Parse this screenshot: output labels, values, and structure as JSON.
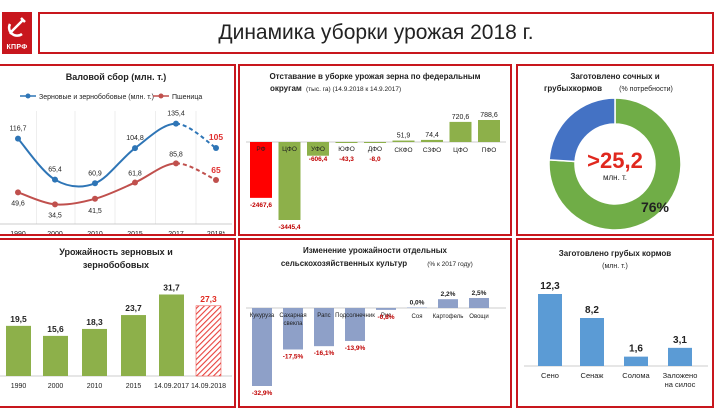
{
  "slide": {
    "title": "Динамика уборки урожая 2018 г.",
    "logo_text": "КПРФ",
    "accent_color": "#c8161d"
  },
  "chart_data": [
    {
      "id": "gross",
      "type": "line",
      "title": "Валовой сбор",
      "title_unit": "(млн. т.)",
      "categories": [
        "1990",
        "2000",
        "2010",
        "2015",
        "2017",
        "2018*"
      ],
      "series": [
        {
          "name": "Зерновые и зернобобовые (млн. т.)",
          "color": "#2e75b6",
          "values": [
            116.7,
            65.4,
            60.9,
            104.8,
            135.4,
            105
          ],
          "labels": [
            "116,7",
            "65,4",
            "60,9",
            "104,8",
            "135,4",
            "105"
          ]
        },
        {
          "name": "Пшеница",
          "color": "#c0504d",
          "values": [
            49.6,
            34.5,
            41.5,
            61.8,
            85.8,
            65
          ],
          "labels": [
            "49,6",
            "34,5",
            "41,5",
            "61,8",
            "85,8",
            "65"
          ]
        }
      ],
      "last_point_dashed": true
    },
    {
      "id": "lag",
      "type": "bar",
      "title": "Отставание в уборке урожая зерна по федеральным",
      "title_line2": "округам",
      "title_unit": "(тыс. га) (14.9.2018 к 14.9.2017)",
      "categories": [
        "РФ",
        "ЦФО",
        "УФО",
        "ЮФО",
        "ДФО",
        "СКФО",
        "СЗФО",
        "ЦФО",
        "ПФО"
      ],
      "values": [
        -2467.6,
        -3445.4,
        -606.4,
        -43.3,
        -8.0,
        51.9,
        74.4,
        720.6,
        788.6
      ],
      "labels": [
        "-2467,6",
        "-3445,4",
        "-606,4",
        "-43,3",
        "-8,0",
        "51,9",
        "74,4",
        "720,6",
        "788,6"
      ],
      "highlight_color": "#ff0000",
      "bar_color": "#8db04a"
    },
    {
      "id": "juicy",
      "type": "pie",
      "title": "Заготовлено сочных и",
      "title_line2": "грубыхкормов",
      "title_unit": "(% потребности)",
      "slices": [
        {
          "label": "76%",
          "value": 76,
          "color": "#70ad47"
        },
        {
          "label": "",
          "value": 24,
          "color": "#4472c4"
        }
      ],
      "center_value": ">25,2",
      "center_unit": "млн. т."
    },
    {
      "id": "yield",
      "type": "bar",
      "title": "Урожайность зерновых и",
      "title_line2": "зернобобовых",
      "categories": [
        "1990",
        "2000",
        "2010",
        "2015",
        "14.09.2017",
        "14.09.2018"
      ],
      "values": [
        19.5,
        15.6,
        18.3,
        23.7,
        31.7,
        27.3
      ],
      "labels": [
        "19,5",
        "15,6",
        "18,3",
        "23,7",
        "31,7",
        "27,3"
      ],
      "bar_color": "#8db04a",
      "last_bar_hatched": true,
      "last_color": "#e8413c"
    },
    {
      "id": "crops",
      "type": "bar",
      "title": "Изменение урожайности отдельных",
      "title_line2": "сельскохозяйственных культур",
      "title_unit": "(% к 2017 году)",
      "categories": [
        "Кукуруза",
        "Сахарная свекла",
        "Рапс",
        "Подсолнечник",
        "Рис",
        "Соя",
        "Картофель",
        "Овощи"
      ],
      "category_lines": [
        [
          "Кукуруза"
        ],
        [
          "Сахарная",
          "свекла"
        ],
        [
          "Рапс"
        ],
        [
          "Подсолнечник"
        ],
        [
          "Рис"
        ],
        [
          "Соя"
        ],
        [
          "Картофель"
        ],
        [
          "Овощи"
        ]
      ],
      "values": [
        -32.9,
        -17.5,
        -16.1,
        -13.9,
        -0.8,
        0.0,
        2.2,
        2.5
      ],
      "labels": [
        "-32,9%",
        "-17,5%",
        "-16,1%",
        "-13,9%",
        "-0,8%",
        "0,0%",
        "2,2%",
        "2,5%"
      ],
      "bar_color": "#8ea0c8"
    },
    {
      "id": "rough",
      "type": "bar",
      "title": "Заготовлено грубых кормов",
      "title_unit": "(млн. т.)",
      "categories": [
        "Сено",
        "Сенаж",
        "Солома",
        "Заложено на силос"
      ],
      "category_lines": [
        [
          "Сено"
        ],
        [
          "Сенаж"
        ],
        [
          "Солома"
        ],
        [
          "Заложено",
          "на силос"
        ]
      ],
      "values": [
        12.3,
        8.2,
        1.6,
        3.1
      ],
      "labels": [
        "12,3",
        "8,2",
        "1,6",
        "3,1"
      ],
      "bar_color": "#5b9bd5"
    }
  ]
}
